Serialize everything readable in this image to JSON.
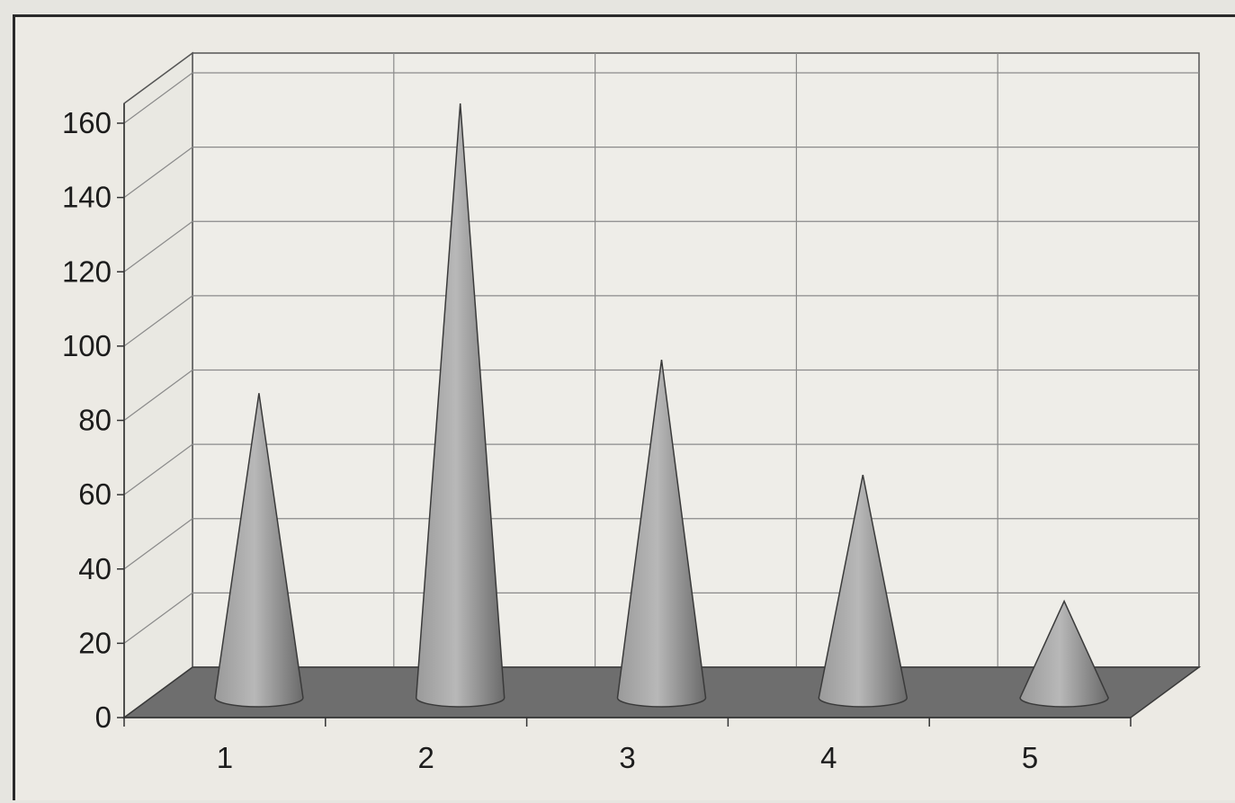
{
  "chart_data": {
    "type": "bar",
    "bar_shape": "cone",
    "three_d": true,
    "categories": [
      "1",
      "2",
      "3",
      "4",
      "5"
    ],
    "values": [
      82,
      160,
      91,
      60,
      26
    ],
    "yticks": [
      "0",
      "20",
      "40",
      "60",
      "80",
      "100",
      "120",
      "140",
      "160"
    ],
    "ylim": [
      0,
      160
    ],
    "grid": true,
    "legend": "none",
    "colors": {
      "cone_light": "#c9c9c9",
      "cone_mid": "#9a9a9a",
      "cone_dark": "#5e5e5e",
      "floor": "#6e6e6e",
      "gridline": "#8a8a8a",
      "plot_bg": "#eeede8"
    }
  }
}
